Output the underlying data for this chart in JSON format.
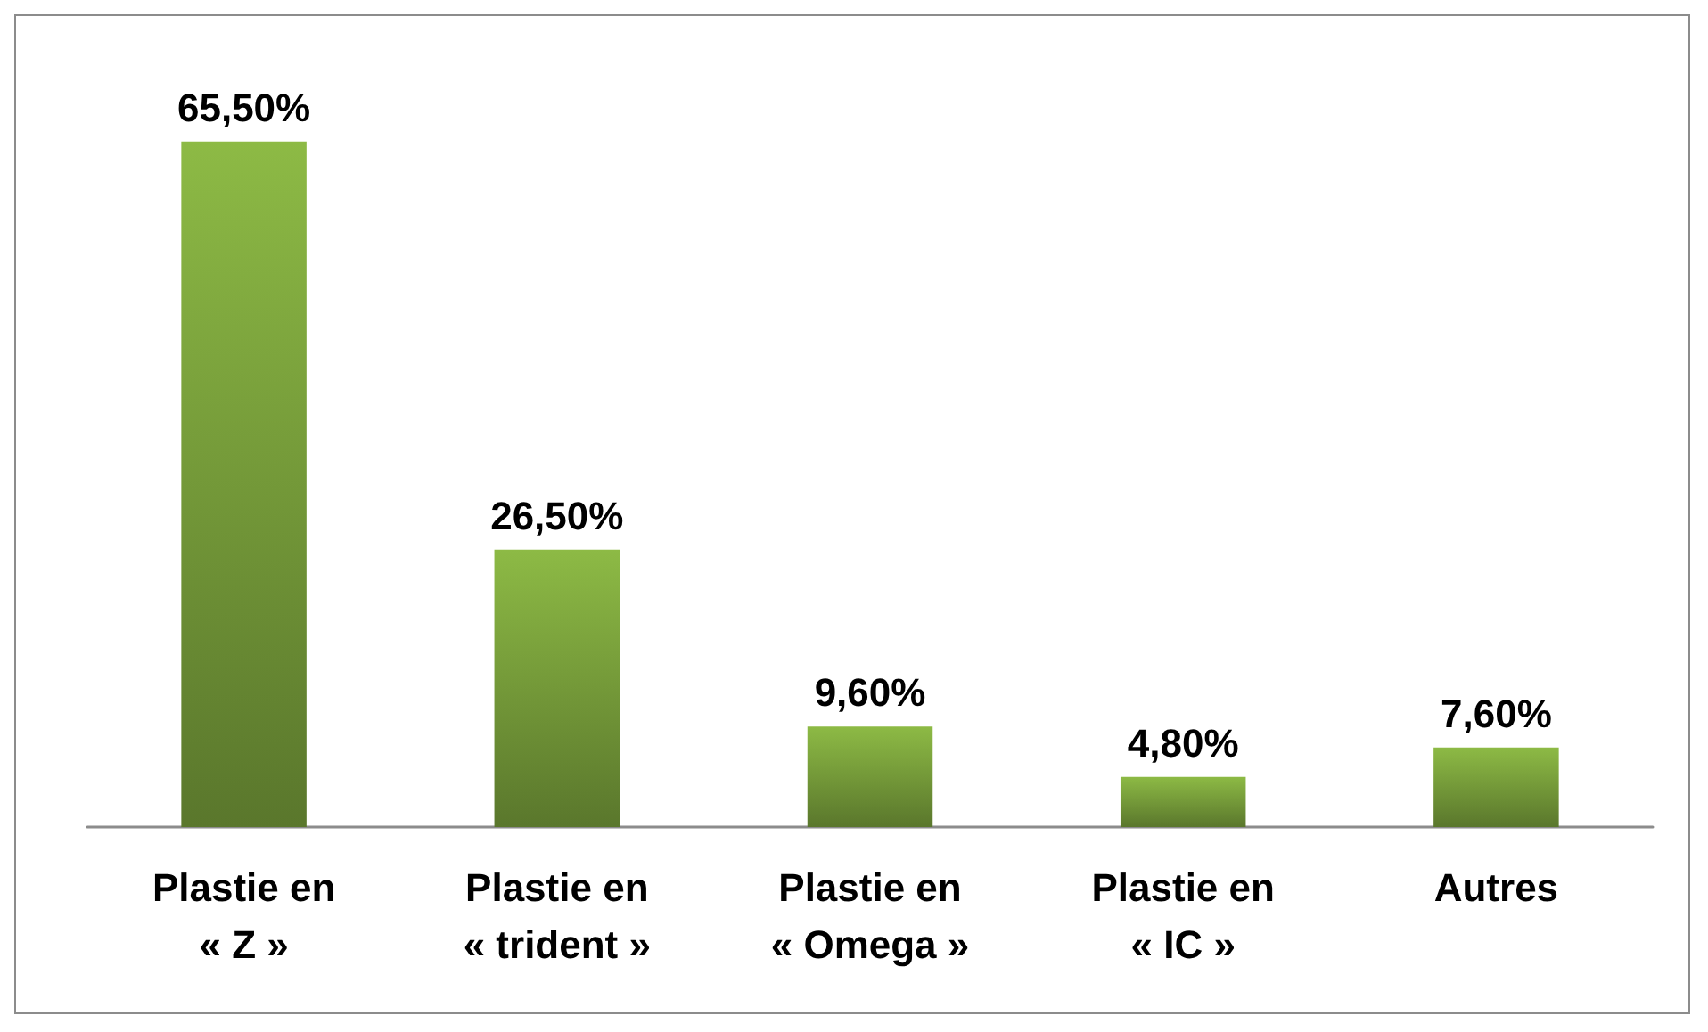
{
  "chart_data": {
    "type": "bar",
    "categories": [
      "Plastie en\n« Z »",
      "Plastie en\n« trident »",
      "Plastie en\n« Omega »",
      "Plastie en\n« IC »",
      "Autres"
    ],
    "values": [
      65.5,
      26.5,
      9.6,
      4.8,
      7.6
    ],
    "value_labels": [
      "65,50%",
      "26,50%",
      "9,60%",
      "4,80%",
      "7,60%"
    ],
    "color": "#8dba45"
  }
}
